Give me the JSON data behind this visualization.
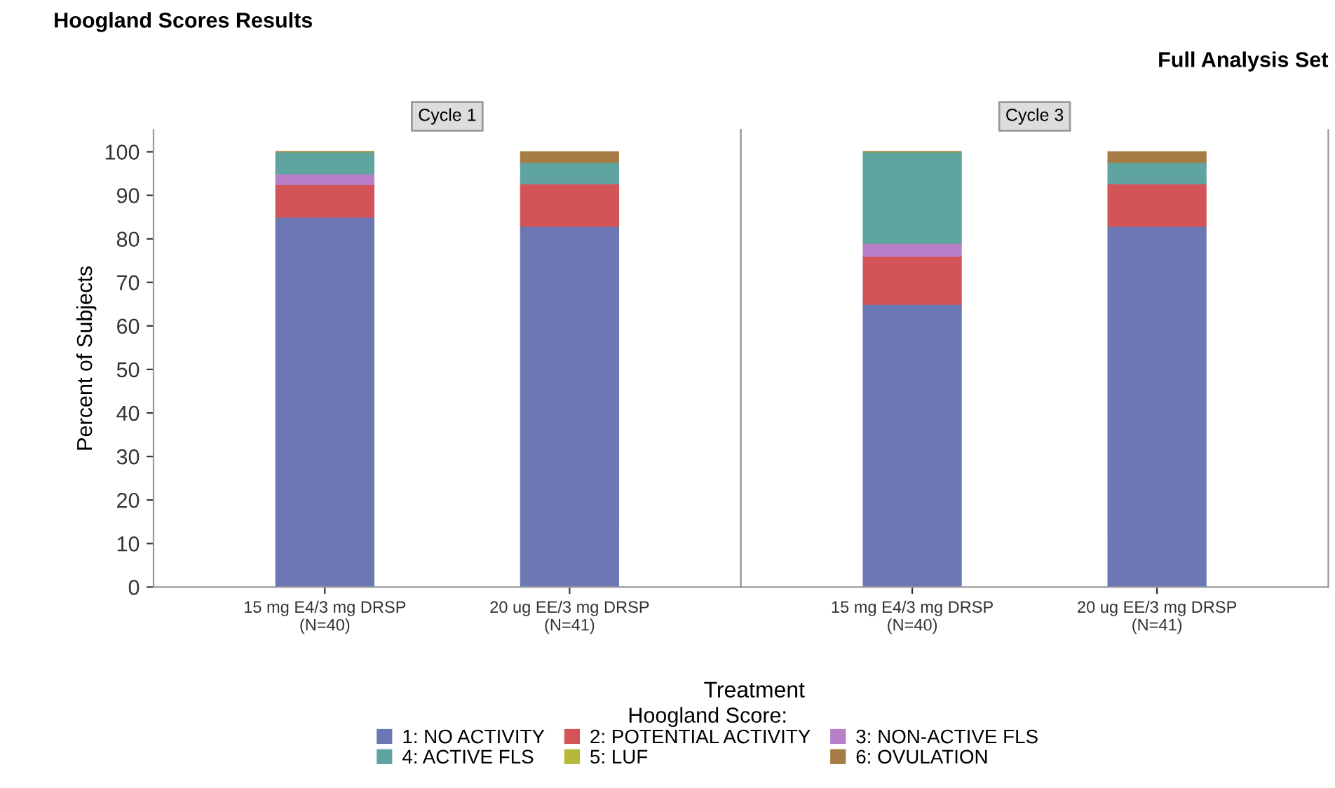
{
  "chart_data": [
    {
      "type": "bar",
      "title": "Hoogland Scores Results",
      "xlabel": "Treatment",
      "ylabel": "Percent of Subjects",
      "legend_title": "Hoogland Score:",
      "legend": "bottom",
      "stacked": true,
      "grid": false,
      "annotations": [
        "Cycle 1"
      ],
      "categories": [
        "15 mg E4/3 mg DRSP\n(N=40)",
        "20 ug EE/3 mg DRSP\n(N=41)"
      ],
      "ylim": [
        0,
        105
      ],
      "yticks": [
        0,
        10,
        20,
        30,
        40,
        50,
        60,
        70,
        80,
        90,
        100
      ],
      "series": [
        {
          "name": "1: NO ACTIVITY",
          "color": "#6b78b4",
          "values": [
            85,
            82.9
          ]
        },
        {
          "name": "2: POTENTIAL ACTIVITY",
          "color": "#d25457",
          "values": [
            7.5,
            9.8
          ]
        },
        {
          "name": "3: NON-ACTIVE FLS",
          "color": "#b87fc9",
          "values": [
            2.5,
            0
          ]
        },
        {
          "name": "4: ACTIVE FLS",
          "color": "#5fa49e",
          "values": [
            5,
            4.9
          ]
        },
        {
          "name": "5: LUF",
          "color": "#b5b83a",
          "values": [
            0,
            0
          ]
        },
        {
          "name": "6: OVULATION",
          "color": "#a57c45",
          "values": [
            0,
            2.4
          ]
        }
      ]
    },
    {
      "type": "bar",
      "subtitle": "Full Analysis Set",
      "stacked": true,
      "grid": false,
      "tick_labels": "x",
      "annotations": [
        "Cycle 3"
      ],
      "categories": [
        "15 mg E4/3 mg DRSP\n(N=40)",
        "20 ug EE/3 mg DRSP\n(N=41)"
      ],
      "ylim": [
        0,
        105
      ],
      "yticks": [
        0,
        10,
        20,
        30,
        40,
        50,
        60,
        70,
        80,
        90,
        100
      ],
      "series": [
        {
          "color": "#6b78b4",
          "values": [
            65,
            82.9
          ]
        },
        {
          "color": "#d25457",
          "values": [
            11,
            9.8
          ]
        },
        {
          "color": "#b87fc9",
          "values": [
            3,
            0
          ]
        },
        {
          "color": "#5fa49e",
          "values": [
            21,
            4.9
          ]
        },
        {
          "color": "#b5b83a",
          "values": [
            0,
            0
          ]
        },
        {
          "color": "#a57c45",
          "values": [
            0,
            2.4
          ]
        }
      ]
    }
  ]
}
